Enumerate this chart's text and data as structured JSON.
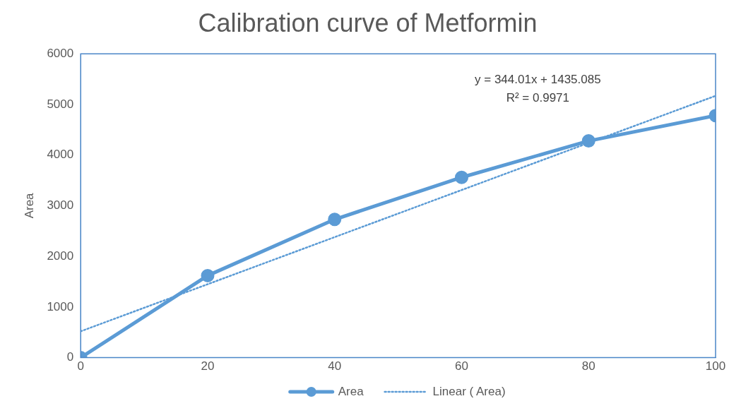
{
  "chart_data": {
    "type": "line",
    "title": "Calibration curve of Metformin",
    "ylabel": "Area",
    "x": [
      0,
      20,
      40,
      60,
      80,
      100
    ],
    "series": [
      {
        "name": "Area",
        "color": "#5b9bd5",
        "values": [
          0,
          1620,
          2730,
          3560,
          4280,
          4780
        ],
        "marker": "circle",
        "line_style": "solid"
      },
      {
        "name": "Linear ( Area)",
        "color": "#5b9bd5",
        "type": "line",
        "x": [
          0,
          100
        ],
        "values": [
          520,
          5170
        ],
        "marker": "none",
        "line_style": "dotted"
      }
    ],
    "xlim": [
      0,
      100
    ],
    "xticks": [
      0,
      20,
      40,
      60,
      80,
      100
    ],
    "ylim": [
      0,
      6000
    ],
    "yticks": [
      0,
      1000,
      2000,
      3000,
      4000,
      5000,
      6000
    ],
    "grid": false,
    "legend": "bottom",
    "annotations": [
      "y = 344.01x + 1435.085",
      "R² = 0.9971"
    ]
  }
}
